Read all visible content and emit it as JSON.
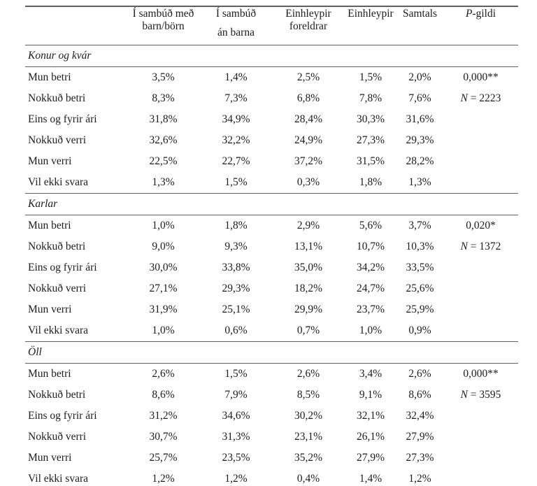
{
  "colors": {
    "background": "#ffffff",
    "text": "#1c1c1c",
    "rule": "#5f5f5f"
  },
  "table": {
    "header": {
      "columns": [
        {
          "id": "row-label",
          "line1": "",
          "line2": ""
        },
        {
          "id": "sambud-med-born",
          "line1": "Í sambúð með",
          "line2": "barn/börn"
        },
        {
          "id": "sambud-an-barna",
          "line1": "Í sambúð",
          "line2": "án barna",
          "line2_gap": true
        },
        {
          "id": "einhleypir-foreldrar",
          "line1": "Einhleypir",
          "line2": "foreldrar"
        },
        {
          "id": "einhleypir",
          "line1": "Einhleypir",
          "line2": ""
        },
        {
          "id": "samtals",
          "line1": "Samtals",
          "line2": ""
        },
        {
          "id": "p-gildi",
          "line1_italic": "P",
          "line1": "-gildi",
          "line2": ""
        }
      ]
    },
    "sections": [
      {
        "title": "Konur og kvár",
        "rows": [
          {
            "label": "Mun betri",
            "values": [
              "3,5%",
              "1,4%",
              "2,5%",
              "1,5%",
              "2,0%"
            ],
            "stat_italic": "",
            "stat_text": "0,000**"
          },
          {
            "label": "Nokkuð betri",
            "values": [
              "8,3%",
              "7,3%",
              "6,8%",
              "7,8%",
              "7,6%"
            ],
            "stat_italic": "N",
            "stat_text": " = 2223"
          },
          {
            "label": "Eins og fyrir ári",
            "values": [
              "31,8%",
              "34,9%",
              "28,4%",
              "30,3%",
              "31,6%"
            ],
            "stat_italic": "",
            "stat_text": ""
          },
          {
            "label": "Nokkuð verri",
            "values": [
              "32,6%",
              "32,2%",
              "24,9%",
              "27,3%",
              "29,3%"
            ],
            "stat_italic": "",
            "stat_text": ""
          },
          {
            "label": "Mun verri",
            "values": [
              "22,5%",
              "22,7%",
              "37,2%",
              "31,5%",
              "28,2%"
            ],
            "stat_italic": "",
            "stat_text": ""
          },
          {
            "label": "Vil ekki svara",
            "values": [
              "1,3%",
              "1,5%",
              "0,3%",
              "1,8%",
              "1,3%"
            ],
            "stat_italic": "",
            "stat_text": ""
          }
        ]
      },
      {
        "title": "Karlar",
        "rows": [
          {
            "label": "Mun betri",
            "values": [
              "1,0%",
              "1,8%",
              "2,9%",
              "5,6%",
              "3,7%"
            ],
            "stat_italic": "",
            "stat_text": "0,020*"
          },
          {
            "label": "Nokkuð betri",
            "values": [
              "9,0%",
              "9,3%",
              "13,1%",
              "10,7%",
              "10,3%"
            ],
            "stat_italic": "N",
            "stat_text": " = 1372"
          },
          {
            "label": "Eins og fyrir ári",
            "values": [
              "30,0%",
              "33,8%",
              "35,0%",
              "34,2%",
              "33,5%"
            ],
            "stat_italic": "",
            "stat_text": ""
          },
          {
            "label": "Nokkuð verri",
            "values": [
              "27,1%",
              "29,3%",
              "18,2%",
              "24,7%",
              "25,6%"
            ],
            "stat_italic": "",
            "stat_text": ""
          },
          {
            "label": "Mun verri",
            "values": [
              "31,9%",
              "25,1%",
              "29,9%",
              "23,7%",
              "25,9%"
            ],
            "stat_italic": "",
            "stat_text": ""
          },
          {
            "label": "Vil ekki svara",
            "values": [
              "1,0%",
              "0,6%",
              "0,7%",
              "1,0%",
              "0,9%"
            ],
            "stat_italic": "",
            "stat_text": ""
          }
        ]
      },
      {
        "title": "Öll",
        "rows": [
          {
            "label": "Mun betri",
            "values": [
              "2,6%",
              "1,5%",
              "2,6%",
              "3,4%",
              "2,6%"
            ],
            "stat_italic": "",
            "stat_text": "0,000**"
          },
          {
            "label": "Nokkuð betri",
            "values": [
              "8,6%",
              "7,9%",
              "8,5%",
              "9,1%",
              "8,6%"
            ],
            "stat_italic": "N",
            "stat_text": " = 3595"
          },
          {
            "label": "Eins og fyrir ári",
            "values": [
              "31,2%",
              "34,6%",
              "30,2%",
              "32,1%",
              "32,4%"
            ],
            "stat_italic": "",
            "stat_text": ""
          },
          {
            "label": "Nokkuð verri",
            "values": [
              "30,7%",
              "31,3%",
              "23,1%",
              "26,1%",
              "27,9%"
            ],
            "stat_italic": "",
            "stat_text": ""
          },
          {
            "label": "Mun verri",
            "values": [
              "25,7%",
              "23,5%",
              "35,2%",
              "27,9%",
              "27,3%"
            ],
            "stat_italic": "",
            "stat_text": ""
          },
          {
            "label": "Vil ekki svara",
            "values": [
              "1,2%",
              "1,2%",
              "0,4%",
              "1,4%",
              "1,2%"
            ],
            "stat_italic": "",
            "stat_text": ""
          }
        ]
      }
    ]
  }
}
